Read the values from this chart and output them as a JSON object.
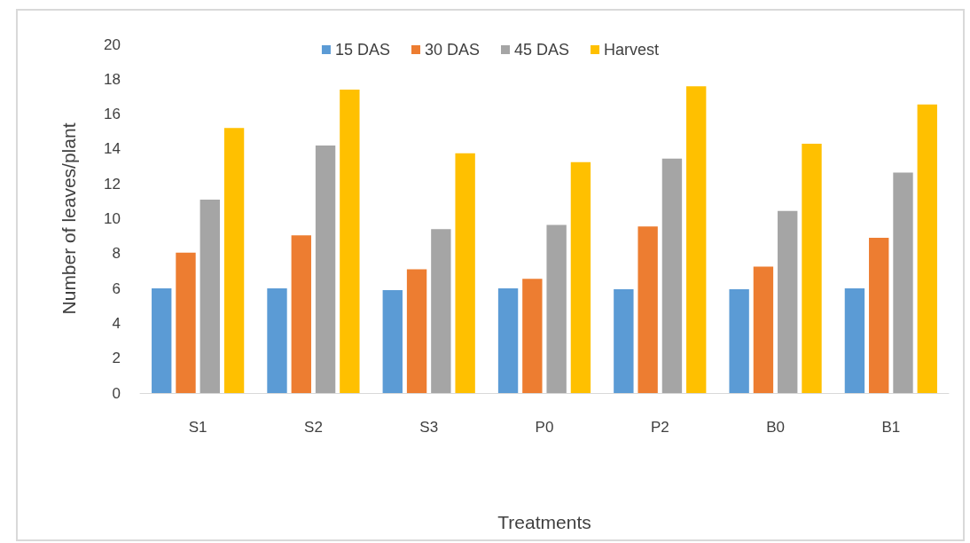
{
  "chart_data": {
    "type": "bar",
    "xlabel": "Treatments",
    "ylabel": "Number of leaves/plant",
    "categories": [
      "S1",
      "S2",
      "S3",
      "P0",
      "P2",
      "B0",
      "B1"
    ],
    "series": [
      {
        "name": "15 DAS",
        "color": "#5b9bd5",
        "values": [
          6.0,
          6.0,
          5.9,
          6.0,
          5.95,
          5.95,
          6.0
        ]
      },
      {
        "name": "30 DAS",
        "color": "#ed7d31",
        "values": [
          8.05,
          9.05,
          7.1,
          6.55,
          9.55,
          7.25,
          8.9
        ]
      },
      {
        "name": "45 DAS",
        "color": "#a5a5a5",
        "values": [
          11.1,
          14.2,
          9.4,
          9.65,
          13.45,
          10.45,
          12.65
        ]
      },
      {
        "name": "Harvest",
        "color": "#ffc000",
        "values": [
          15.2,
          17.4,
          13.75,
          13.25,
          17.6,
          14.3,
          16.55
        ]
      }
    ],
    "ylim": [
      0,
      20
    ],
    "yticks": [
      0,
      2,
      4,
      6,
      8,
      10,
      12,
      14,
      16,
      18,
      20
    ],
    "grid": false,
    "legend": "top"
  }
}
